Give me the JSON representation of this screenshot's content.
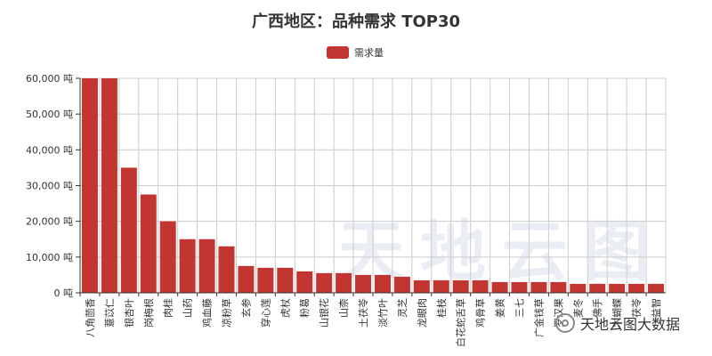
{
  "chart_data": {
    "type": "bar",
    "title": "广西地区：品种需求 TOP30",
    "legend": {
      "position": "top-center",
      "label": "需求量"
    },
    "colors": {
      "bar": "#c23531",
      "axis": "#333333",
      "grid": "#cccccc"
    },
    "y_unit": "吨",
    "ylim": [
      0,
      60000
    ],
    "yticks": [
      0,
      10000,
      20000,
      30000,
      40000,
      50000,
      60000
    ],
    "ytick_labels": [
      "0 吨",
      "10,000 吨",
      "20,000 吨",
      "30,000 吨",
      "40,000 吨",
      "50,000 吨",
      "60,000 吨"
    ],
    "grid": true,
    "categories": [
      "八角茴香",
      "薏苡仁",
      "银杏叶",
      "岗梅根",
      "肉桂",
      "山药",
      "鸡血藤",
      "凉粉草",
      "玄参",
      "穿心莲",
      "虎杖",
      "粉葛",
      "山银花",
      "山柰",
      "土茯苓",
      "淡竹叶",
      "灵芝",
      "龙眼肉",
      "桂枝",
      "白花蛇舌草",
      "鸡骨草",
      "姜黄",
      "三七",
      "广金钱草",
      "罗汉果",
      "麦冬",
      "佛手",
      "木蝴蝶",
      "茯苓",
      "益智"
    ],
    "series": [
      {
        "name": "需求量",
        "values": [
          60000,
          60000,
          35000,
          27500,
          20000,
          15000,
          15000,
          13000,
          7500,
          7000,
          7000,
          6000,
          5500,
          5500,
          5000,
          5000,
          4500,
          3500,
          3500,
          3500,
          3500,
          3000,
          3000,
          3000,
          3000,
          2500,
          2500,
          2500,
          2500,
          2500
        ]
      }
    ]
  },
  "watermark": {
    "text": "天地云图"
  },
  "brand": {
    "text": "天地云图大数据",
    "icon": "wechat-icon"
  }
}
